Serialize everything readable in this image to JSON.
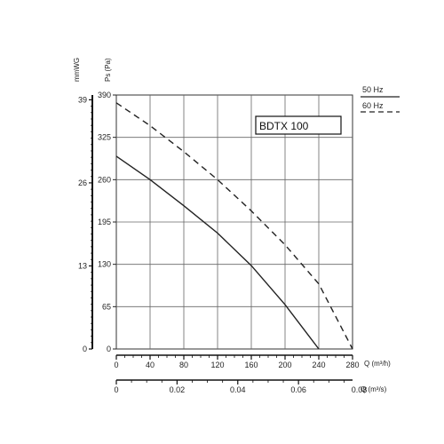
{
  "chart_data": {
    "type": "line",
    "model_label": "BDTX 100",
    "x_axis": {
      "label": "Q (m³/h)",
      "unit_prefix": "Q",
      "unit": "(m³/h)",
      "range": [
        0,
        280
      ],
      "ticks": [
        "0",
        "40",
        "80",
        "120",
        "160",
        "200",
        "240",
        "280"
      ],
      "tick_values": [
        0,
        40,
        80,
        120,
        160,
        200,
        240,
        280
      ],
      "minor_step": 10
    },
    "x2_axis": {
      "label": "Q (m³/s)",
      "unit_prefix": "Q",
      "unit": "(m³/s)",
      "range": [
        0,
        0.0778
      ],
      "ticks": [
        "0",
        "0.02",
        "0.04",
        "0.06",
        "0.08"
      ],
      "tick_values": [
        0,
        0.02,
        0.04,
        0.06,
        0.08
      ],
      "minor_step": 0.005
    },
    "y_axis": {
      "label": "Ps (Pa)",
      "range": [
        0,
        390
      ],
      "ticks": [
        "0",
        "65",
        "130",
        "195",
        "260",
        "325",
        "390"
      ],
      "tick_values": [
        0,
        65,
        130,
        195,
        260,
        325,
        390
      ]
    },
    "y2_axis": {
      "label": "mmWG",
      "range": [
        0,
        39.75
      ],
      "ticks": [
        "0",
        "13",
        "26",
        "39"
      ],
      "tick_values": [
        0,
        13,
        26,
        39
      ]
    },
    "grid": true,
    "legend_position": "top-right",
    "series": [
      {
        "name": "50 Hz",
        "style": "solid",
        "color": "#222222",
        "x": [
          0,
          40,
          80,
          120,
          160,
          200,
          240
        ],
        "y": [
          296,
          260,
          220,
          178,
          128,
          68,
          0
        ]
      },
      {
        "name": "60 Hz",
        "style": "dashed",
        "color": "#222222",
        "x": [
          0,
          40,
          80,
          120,
          160,
          200,
          240,
          280
        ],
        "y": [
          378,
          343,
          303,
          260,
          212,
          160,
          100,
          0
        ]
      }
    ]
  }
}
